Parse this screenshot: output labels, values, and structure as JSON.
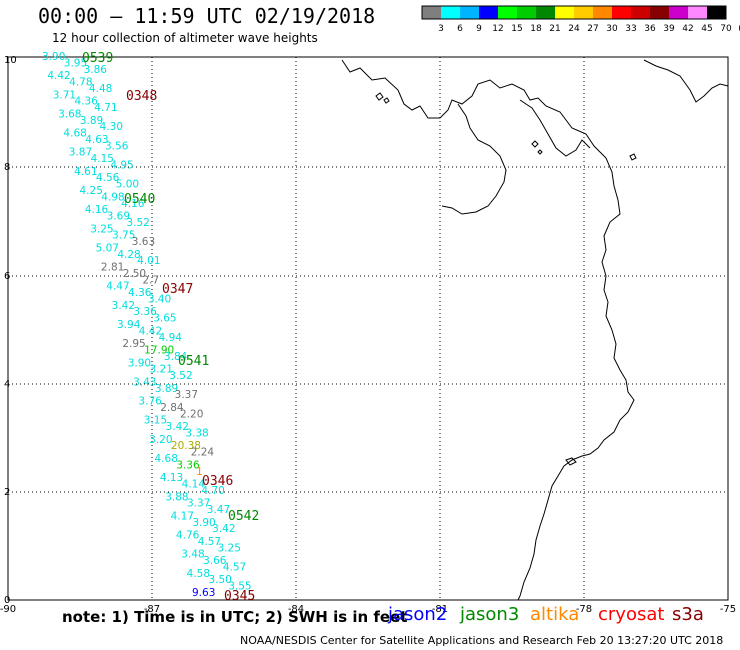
{
  "header": {
    "title": "00:00 – 11:59 UTC 02/19/2018",
    "subtitle": "12 hour collection of altimeter wave heights"
  },
  "legend": {
    "colors": [
      "#7f7f7f",
      "#00ffff",
      "#00b4ff",
      "#0000ff",
      "#00ff00",
      "#00cc00",
      "#008800",
      "#ffff00",
      "#ffcc00",
      "#ff8800",
      "#ff0000",
      "#cc0000",
      "#880000",
      "#cc00cc",
      "#ff88ff",
      "#000000"
    ],
    "labels": [
      "3",
      "6",
      "9",
      "12",
      "15",
      "18",
      "21",
      "24",
      "27",
      "30",
      "33",
      "36",
      "39",
      "42",
      "45",
      "70",
      "(ft)"
    ]
  },
  "axes": {
    "x_ticks": [
      "-90",
      "-87",
      "-84",
      "-81",
      "-78",
      "-75"
    ],
    "y_ticks": [
      "0",
      "2",
      "4",
      "6",
      "8",
      "10"
    ]
  },
  "tracks": [
    {
      "label": "0539",
      "color": "#008800"
    },
    {
      "label": "0348",
      "color": "#880000"
    },
    {
      "label": "0540",
      "color": "#008800"
    },
    {
      "label": "0347",
      "color": "#880000"
    },
    {
      "label": "0541",
      "color": "#008800"
    },
    {
      "label": "0346",
      "color": "#880000"
    },
    {
      "label": "0542",
      "color": "#008800"
    },
    {
      "label": "0345",
      "color": "#880000"
    }
  ],
  "values": [
    {
      "v": "3.90",
      "c": "#00dddd"
    },
    {
      "v": "3.95",
      "c": "#00dddd"
    },
    {
      "v": "3.86",
      "c": "#00dddd"
    },
    {
      "v": "4.42",
      "c": "#00dddd"
    },
    {
      "v": "4.78",
      "c": "#00dddd"
    },
    {
      "v": "4.48",
      "c": "#00dddd"
    },
    {
      "v": "3.71",
      "c": "#00dddd"
    },
    {
      "v": "4.36",
      "c": "#00dddd"
    },
    {
      "v": "4.71",
      "c": "#00dddd"
    },
    {
      "v": "3.68",
      "c": "#00dddd"
    },
    {
      "v": "3.89",
      "c": "#00dddd"
    },
    {
      "v": "4.30",
      "c": "#00dddd"
    },
    {
      "v": "4.68",
      "c": "#00dddd"
    },
    {
      "v": "4.63",
      "c": "#00dddd"
    },
    {
      "v": "3.56",
      "c": "#00dddd"
    },
    {
      "v": "3.87",
      "c": "#00dddd"
    },
    {
      "v": "4.15",
      "c": "#00dddd"
    },
    {
      "v": "4.95",
      "c": "#00dddd"
    },
    {
      "v": "4.61",
      "c": "#00dddd"
    },
    {
      "v": "4.56",
      "c": "#00dddd"
    },
    {
      "v": "5.00",
      "c": "#00dddd"
    },
    {
      "v": "4.25",
      "c": "#00dddd"
    },
    {
      "v": "4.98",
      "c": "#00dddd"
    },
    {
      "v": "4.16",
      "c": "#00dddd"
    },
    {
      "v": "4.16",
      "c": "#00dddd"
    },
    {
      "v": "3.69",
      "c": "#00dddd"
    },
    {
      "v": "3.52",
      "c": "#00dddd"
    },
    {
      "v": "3.25",
      "c": "#00dddd"
    },
    {
      "v": "3.75",
      "c": "#00dddd"
    },
    {
      "v": "3.63",
      "c": "#707070"
    },
    {
      "v": "5.07",
      "c": "#00dddd"
    },
    {
      "v": "4.28",
      "c": "#00dddd"
    },
    {
      "v": "4.01",
      "c": "#00dddd"
    },
    {
      "v": "2.81",
      "c": "#707070"
    },
    {
      "v": "2.50",
      "c": "#707070"
    },
    {
      "v": "2.7",
      "c": "#707070"
    },
    {
      "v": "4.47",
      "c": "#00dddd"
    },
    {
      "v": "4.36",
      "c": "#00dddd"
    },
    {
      "v": "3.40",
      "c": "#00dddd"
    },
    {
      "v": "3.42",
      "c": "#00dddd"
    },
    {
      "v": "3.36",
      "c": "#00dddd"
    },
    {
      "v": "3.65",
      "c": "#00dddd"
    },
    {
      "v": "3.94",
      "c": "#00dddd"
    },
    {
      "v": "4.42",
      "c": "#00dddd"
    },
    {
      "v": "4.94",
      "c": "#00dddd"
    },
    {
      "v": "2.95",
      "c": "#707070"
    },
    {
      "v": "17.90",
      "c": "#00cc00"
    },
    {
      "v": "3.84",
      "c": "#00dddd"
    },
    {
      "v": "3.90",
      "c": "#00dddd"
    },
    {
      "v": "3.21",
      "c": "#00dddd"
    },
    {
      "v": "3.52",
      "c": "#00dddd"
    },
    {
      "v": "3.43",
      "c": "#00dddd"
    },
    {
      "v": "3.89",
      "c": "#00dddd"
    },
    {
      "v": "3.37",
      "c": "#707070"
    },
    {
      "v": "3.76",
      "c": "#00dddd"
    },
    {
      "v": "2.84",
      "c": "#707070"
    },
    {
      "v": "2.20",
      "c": "#707070"
    },
    {
      "v": "3.15",
      "c": "#00dddd"
    },
    {
      "v": "3.42",
      "c": "#00dddd"
    },
    {
      "v": "3.38",
      "c": "#00dddd"
    },
    {
      "v": "3.20",
      "c": "#00dddd"
    },
    {
      "v": "20.38",
      "c": "#aaaa00"
    },
    {
      "v": "2.24",
      "c": "#707070"
    },
    {
      "v": "4.68",
      "c": "#00dddd"
    },
    {
      "v": "3.36",
      "c": "#00cc00"
    },
    {
      "v": "1",
      "c": "#ff8800"
    },
    {
      "v": "4.13",
      "c": "#00dddd"
    },
    {
      "v": "4.14",
      "c": "#00dddd"
    },
    {
      "v": "4.70",
      "c": "#00dddd"
    },
    {
      "v": "3.88",
      "c": "#00dddd"
    },
    {
      "v": "3.37",
      "c": "#00dddd"
    },
    {
      "v": "3.47",
      "c": "#00dddd"
    },
    {
      "v": "4.17",
      "c": "#00dddd"
    },
    {
      "v": "3.90",
      "c": "#00dddd"
    },
    {
      "v": "3.42",
      "c": "#00dddd"
    },
    {
      "v": "4.76",
      "c": "#00dddd"
    },
    {
      "v": "4.57",
      "c": "#00dddd"
    },
    {
      "v": "3.25",
      "c": "#00dddd"
    },
    {
      "v": "3.48",
      "c": "#00dddd"
    },
    {
      "v": "3.66",
      "c": "#00dddd"
    },
    {
      "v": "4.57",
      "c": "#00dddd"
    },
    {
      "v": "4.58",
      "c": "#00dddd"
    },
    {
      "v": "3.50",
      "c": "#00dddd"
    },
    {
      "v": "3.55",
      "c": "#00dddd"
    },
    {
      "v": "9.63",
      "c": "#0000ff"
    }
  ],
  "footer": {
    "note": "note: 1) Time is in UTC; 2) SWH is in feet",
    "credit": "NOAA/NESDIS Center for Satellite Applications and Research   Feb 20 13:27:20 UTC 2018",
    "satellites": [
      {
        "name": "jason2",
        "color": "#0000ff"
      },
      {
        "name": "jason3",
        "color": "#008800"
      },
      {
        "name": "altika",
        "color": "#ff8800"
      },
      {
        "name": "cryosat",
        "color": "#ff0000"
      },
      {
        "name": "s3a",
        "color": "#880000"
      }
    ]
  }
}
